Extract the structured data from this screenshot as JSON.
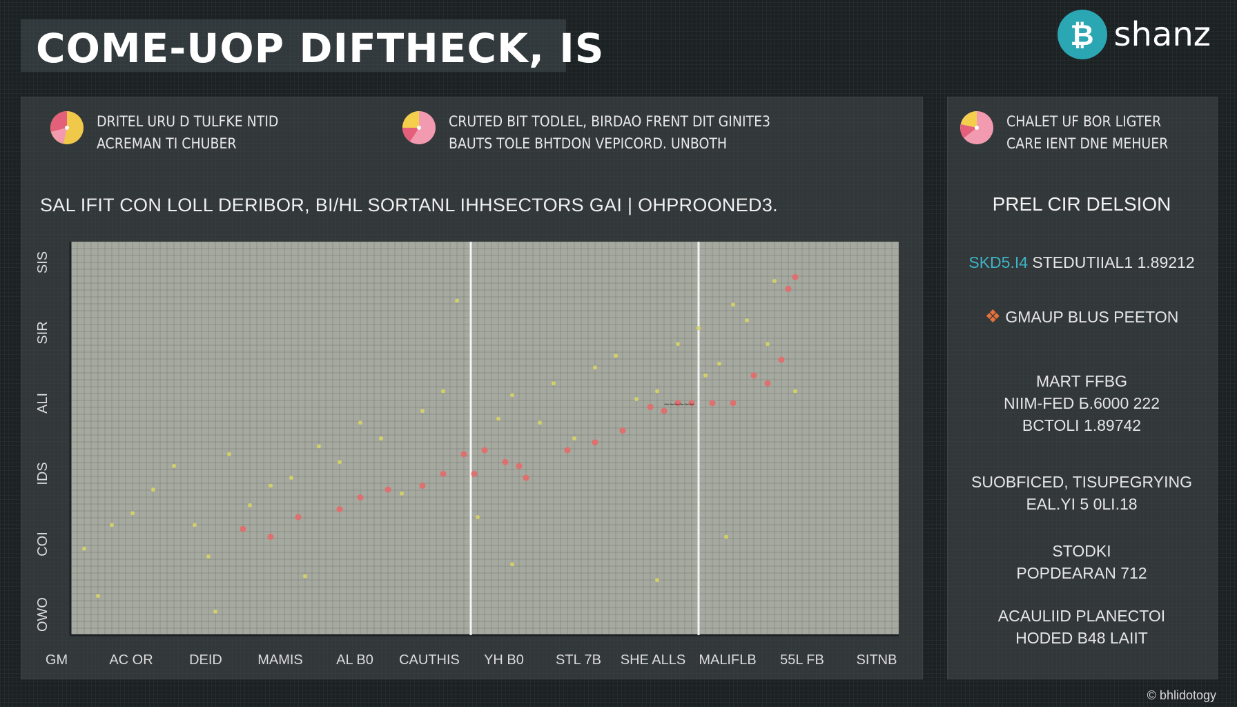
{
  "header": {
    "title": "COME-UOP DIFTHECK, IS",
    "brand": {
      "icon": "bitcoin-icon",
      "icon_glyph": "₿",
      "name": "shanz",
      "color": "#2aa7b3"
    }
  },
  "legend": [
    {
      "icon": "pie-chart-icon",
      "lines": [
        "DRITEL URU D TULFKE NTID",
        "ACREMAN TI CHUBER"
      ]
    },
    {
      "icon": "pie-chart-icon",
      "lines": [
        "CRUTED BIT TODLEL, BIRDAO FRENT DIT GINITE3",
        "BAUTS TOLE BHTDON VEPICORD. UNBOTH"
      ]
    },
    {
      "icon": "pie-chart-icon",
      "lines": [
        "CHALET UF BOR LIGTER",
        "CARE IENT DNE MEHUER"
      ]
    }
  ],
  "sidebar": {
    "heading": "PREL CIR DELSION",
    "row1": {
      "accent": "SKD5.I4",
      "text": "STEDUTIIAL1 1.89212"
    },
    "row2": {
      "icon": "hand-icon",
      "text": "GMAUP BLUS PEETON"
    },
    "block1": [
      "MART FFBG",
      "NIIM-FED Б.6000 222",
      "BCTOLI 1.89742"
    ],
    "block2": [
      "SUOBFICED, TISUPEGRYING",
      "EAL.YI 5 0LI.18"
    ],
    "block3": [
      "STODKI",
      "POPDEARAN 712"
    ],
    "block4": [
      "ACAULIID PLANECTOI",
      "HODED B48 LAIIT"
    ]
  },
  "credit": "© bhlidotogy",
  "chart_data": {
    "type": "scatter",
    "title": "SAL IFIT CON LOLL DERIBOR, BI/HL SORTANL IHHSECTORS GAI | OHPROONED3.",
    "x_categories": [
      "GM",
      "AC OR",
      "DEID",
      "MAMIS",
      "AL B0",
      "CAUTHIS",
      "YH B0",
      "STL 7B",
      "SHE ALLS",
      "MALIFLB",
      "55L FB",
      "SITNB"
    ],
    "y_ticks": [
      "SIS",
      "SIR",
      "ALI",
      "IDS",
      "COI",
      "OWO"
    ],
    "xlim": [
      0,
      12
    ],
    "ylim": [
      0,
      100
    ],
    "grid": true,
    "colors": {
      "series_red": "#e46a6a",
      "series_yellow": "#d8d463",
      "plot_bg": "#a6a99f"
    },
    "annotation": "~~~~~~",
    "vlines": [
      5.8,
      9.1
    ],
    "series": [
      {
        "color": "#e46a6a",
        "points": [
          [
            2.5,
            27
          ],
          [
            2.9,
            25
          ],
          [
            3.3,
            30
          ],
          [
            3.9,
            32
          ],
          [
            4.2,
            35
          ],
          [
            4.6,
            37
          ],
          [
            5.1,
            38
          ],
          [
            5.4,
            41
          ],
          [
            5.7,
            46
          ],
          [
            5.85,
            41
          ],
          [
            6.0,
            47
          ],
          [
            6.3,
            44
          ],
          [
            6.5,
            43
          ],
          [
            6.6,
            40
          ],
          [
            7.2,
            47
          ],
          [
            7.6,
            49
          ],
          [
            8.0,
            52
          ],
          [
            8.4,
            58
          ],
          [
            8.6,
            57
          ],
          [
            8.8,
            59
          ],
          [
            9.0,
            59
          ],
          [
            9.3,
            59
          ],
          [
            9.6,
            59
          ],
          [
            9.9,
            66
          ],
          [
            10.1,
            64
          ],
          [
            10.3,
            70
          ],
          [
            10.4,
            88
          ],
          [
            10.5,
            91
          ]
        ]
      },
      {
        "color": "#d8d463",
        "points": [
          [
            0.2,
            22
          ],
          [
            0.6,
            28
          ],
          [
            0.9,
            31
          ],
          [
            1.2,
            37
          ],
          [
            1.5,
            43
          ],
          [
            1.8,
            28
          ],
          [
            2.0,
            20
          ],
          [
            2.3,
            46
          ],
          [
            2.6,
            33
          ],
          [
            2.9,
            38
          ],
          [
            3.2,
            40
          ],
          [
            3.6,
            48
          ],
          [
            3.9,
            44
          ],
          [
            4.2,
            54
          ],
          [
            4.5,
            50
          ],
          [
            4.8,
            36
          ],
          [
            5.1,
            57
          ],
          [
            5.4,
            62
          ],
          [
            5.6,
            85
          ],
          [
            5.9,
            30
          ],
          [
            6.2,
            55
          ],
          [
            6.4,
            61
          ],
          [
            6.8,
            54
          ],
          [
            7.0,
            64
          ],
          [
            7.3,
            50
          ],
          [
            7.6,
            68
          ],
          [
            7.9,
            71
          ],
          [
            8.2,
            60
          ],
          [
            8.5,
            62
          ],
          [
            8.8,
            74
          ],
          [
            9.1,
            78
          ],
          [
            9.2,
            66
          ],
          [
            9.4,
            69
          ],
          [
            9.6,
            84
          ],
          [
            9.8,
            80
          ],
          [
            10.1,
            74
          ],
          [
            10.2,
            90
          ],
          [
            10.5,
            62
          ],
          [
            0.4,
            10
          ],
          [
            2.1,
            6
          ],
          [
            3.4,
            15
          ],
          [
            6.4,
            18
          ],
          [
            8.5,
            14
          ],
          [
            9.5,
            25
          ]
        ]
      }
    ]
  }
}
